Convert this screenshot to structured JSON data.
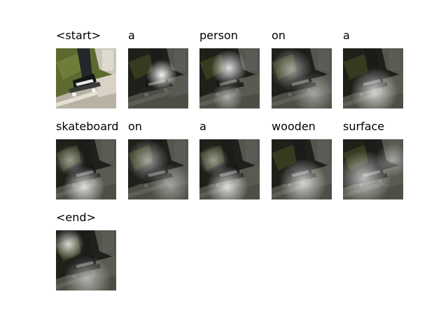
{
  "frames": [
    {
      "word": "<start>",
      "image": "skateboard-photo",
      "attention": "none"
    },
    {
      "word": "a",
      "image": "attention-map",
      "attention": "focus"
    },
    {
      "word": "person",
      "image": "attention-map",
      "attention": "leg"
    },
    {
      "word": "on",
      "image": "attention-map",
      "attention": "diffuse"
    },
    {
      "word": "a",
      "image": "attention-map",
      "attention": "lower"
    },
    {
      "word": "skateboard",
      "image": "attention-map",
      "attention": "board"
    },
    {
      "word": "on",
      "image": "attention-map",
      "attention": "diffuse"
    },
    {
      "word": "a",
      "image": "attention-map",
      "attention": "board"
    },
    {
      "word": "wooden",
      "image": "attention-map",
      "attention": "lower"
    },
    {
      "word": "surface",
      "image": "attention-map",
      "attention": "wide"
    },
    {
      "word": "<end>",
      "image": "attention-map",
      "attention": "upper-left"
    }
  ]
}
